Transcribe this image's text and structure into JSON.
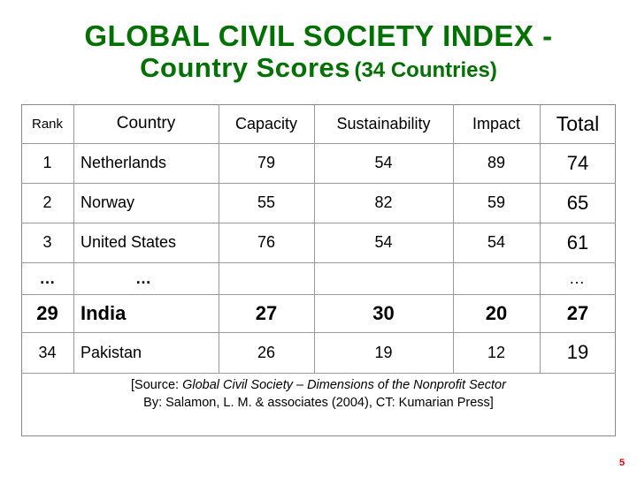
{
  "slide": {
    "title_line1": "GLOBAL CIVIL SOCIETY INDEX -",
    "title_line2_main": "Country Scores",
    "title_line2_sub": "(34 Countries)",
    "page_number": "5"
  },
  "table": {
    "headers": {
      "rank": "Rank",
      "country": "Country",
      "capacity": "Capacity",
      "sustainability": "Sustainability",
      "impact": "Impact",
      "total": "Total"
    },
    "rows": [
      {
        "rank": "1",
        "country": "Netherlands",
        "capacity": "79",
        "sustainability": "54",
        "impact": "89",
        "total": "74"
      },
      {
        "rank": "2",
        "country": "Norway",
        "capacity": "55",
        "sustainability": "82",
        "impact": "59",
        "total": "65"
      },
      {
        "rank": "3",
        "country": "United States",
        "capacity": "76",
        "sustainability": "54",
        "impact": "54",
        "total": "61"
      },
      {
        "rank": "…",
        "country": "…",
        "capacity": "",
        "sustainability": "",
        "impact": "",
        "total": "…"
      },
      {
        "rank": "29",
        "country": "India",
        "capacity": "27",
        "sustainability": "30",
        "impact": "20",
        "total": "27"
      },
      {
        "rank": "34",
        "country": "Pakistan",
        "capacity": "26",
        "sustainability": "19",
        "impact": "12",
        "total": "19"
      }
    ]
  },
  "source": {
    "prefix": "[Source: ",
    "title": "Global Civil Society – Dimensions of the Nonprofit Sector",
    "line2": "By: Salamon, L. M. & associates (2004), CT: Kumarian Press]"
  }
}
